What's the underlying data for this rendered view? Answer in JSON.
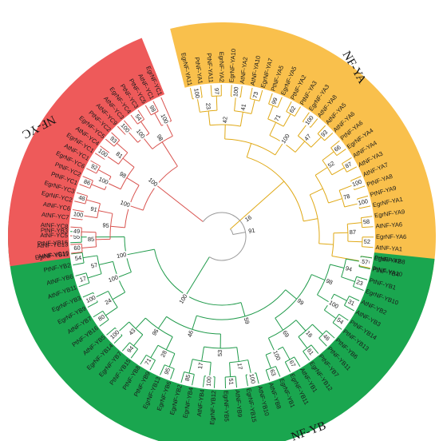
{
  "figure": {
    "background": "#ffffff",
    "clades": [
      {
        "key": "nfya",
        "label": "NF-YA",
        "band_color": "#f9c04c",
        "branch_color": "#e0a916",
        "leaves": [
          "EgrNF-YA11",
          "PtNF-YA1",
          "PtNF-YA11",
          "EgrNF-YA2",
          "EgrNF-YA10",
          "AtNF-YA2",
          "AtNF-YA10",
          "EgrNF-YA7",
          "PtNF-YA5",
          "EgrNF-YA5",
          "PtNF-YA2",
          "PtNF-YA3",
          "EgrNF-YA3",
          "AtNF-YA8",
          "AtNF-YA5",
          "AtNF-YA6",
          "PtNF-YA6",
          "EgrNF-YA4",
          "AtNF-YA4",
          "AtNF-YA3",
          "AtNF-YA7",
          "PtNF-YA8",
          "PtNF-YA9",
          "EgrNF-YA1",
          "EgrNF-YA9",
          "AtNF-YA6",
          "EgrNF-YA6",
          "AtNF-YA1",
          "PtNF-YA7",
          "PtNF-YA10"
        ],
        "bootstraps": [
          "100",
          "97",
          "100",
          "73",
          "99",
          "62",
          "100",
          "93",
          "66",
          "87",
          "100",
          "100",
          "58",
          "52",
          "100",
          "23",
          "41",
          "71",
          "47",
          "52",
          "78",
          "87",
          "42",
          "100"
        ]
      },
      {
        "key": "nfyb",
        "label": "NF-YB",
        "band_color": "#1aa64f",
        "branch_color": "#1f9a4a",
        "leaves": [
          "EgrNF-YB8",
          "PtNF-YB4",
          "PtNF-YB1",
          "EgrNF-YB10",
          "AtNF-YB2",
          "AtNF-YB3",
          "PtNF-YB14",
          "PtNF-YB13",
          "PtNF-YB6",
          "PtNF-YB11",
          "PtNF-YB7",
          "EgrNF-YB12",
          "AtNF-YB1",
          "EgrNF-YB11",
          "EgrNF-YB1",
          "AtNF-YB8",
          "AtNF-YB10",
          "EgrNF-YB15",
          "AtNF-YB9",
          "EgrNF-YB5",
          "EgrNF-YB12",
          "AtNF-YB4",
          "EgrNF-YB4",
          "EgrNF-YB2",
          "EgrNF-YB6",
          "EgrNF-YB13",
          "PtNF-YB9",
          "PtNF-YB8",
          "PtNF-YB15",
          "EgrNF-YB7",
          "EgrNF-YB14",
          "AtNF-YB5",
          "PtNF-YB16",
          "AtNF-YB7",
          "EgrNF-YB9",
          "EgrNF-YB3",
          "AtNF-YB11",
          "AtNF-YB6",
          "PtNF-YB2",
          "EgrNF-YB11",
          "PtNF-YB16",
          "PtNF-YB3"
        ],
        "bootstraps": [
          "57",
          "23",
          "31",
          "54",
          "46",
          "61",
          "67",
          "63",
          "100",
          "51",
          "100",
          "85",
          "95",
          "71",
          "94",
          "100",
          "80",
          "100",
          "17",
          "54",
          "55",
          "94",
          "100",
          "16",
          "100",
          "17",
          "17",
          "28",
          "43",
          "24",
          "57",
          "98",
          "69",
          "53",
          "96",
          "100",
          "99",
          "46",
          "100",
          "59",
          "100",
          "84",
          "44",
          "100",
          "98",
          "48",
          "95"
        ]
      },
      {
        "key": "nfyc",
        "label": "NF-YC",
        "band_color": "#ee5a5a",
        "branch_color": "#d9534f",
        "leaves": [
          "AtNF-YC10",
          "AtNF-YC13",
          "AtNF-YC5",
          "AtNF-YC8",
          "AtNF-YC7",
          "AtNF-YC6",
          "EgrNF-YC2",
          "EgrNF-YC3",
          "PtNF-YC1",
          "PtNF-YC2",
          "EgrNF-YC6",
          "AtNF-YC1",
          "EgrNF-YC1",
          "AtNF-YC4",
          "EgrNF-YC5",
          "PtNF-YC2",
          "AtNF-YC9",
          "AtNF-YC3",
          "EgrNF-YC4",
          "PtNF-YC3",
          "PtNF-YC5",
          "AtNF-YC1",
          "EgrNF-YC1"
        ],
        "bootstraps": [
          "60",
          "49",
          "100",
          "48",
          "86",
          "92",
          "100",
          "93",
          "100",
          "54",
          "98",
          "85",
          "91",
          "100",
          "81",
          "100",
          "100",
          "95",
          "98",
          "98",
          "100",
          "100",
          "61"
        ]
      }
    ],
    "root_bootstraps": [
      "91",
      "16"
    ]
  }
}
